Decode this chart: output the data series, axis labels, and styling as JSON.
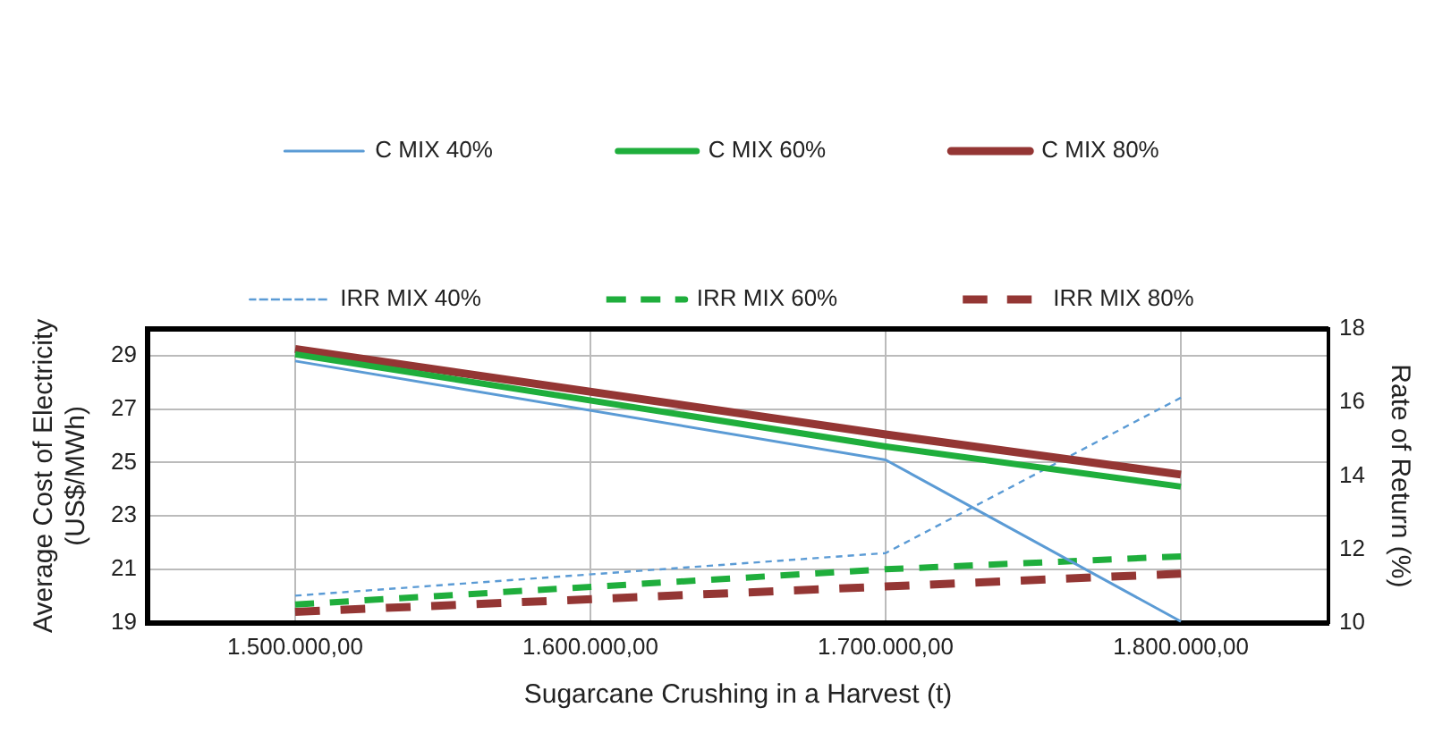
{
  "chart_data": {
    "type": "line",
    "xlabel": "Sugarcane Crushing in a Harvest (t)",
    "ylabel": "Average Cost of Electricity\n(US$/MWh)",
    "y2label": "Rate of Return (%)",
    "x": [
      1500000,
      1700000,
      1800000
    ],
    "xlim": [
      1450000,
      1850000
    ],
    "xticks": [
      {
        "value": 1500000,
        "label": "1.500.000,00"
      },
      {
        "value": 1600000,
        "label": "1.600.000,00"
      },
      {
        "value": 1700000,
        "label": "1.700.000,00"
      },
      {
        "value": 1800000,
        "label": "1.800.000,00"
      }
    ],
    "ylim": [
      19,
      30
    ],
    "yticks": [
      19,
      21,
      23,
      25,
      27,
      29
    ],
    "y2lim": [
      10,
      18
    ],
    "y2ticks": [
      10,
      12,
      14,
      16,
      18
    ],
    "grid": true,
    "legend": "top",
    "marker": "none",
    "series": [
      {
        "name": "C MIX 40%",
        "color": "#5b9bd5",
        "values": [
          28.8,
          25.1,
          19.05
        ],
        "line_style": "solid"
      },
      {
        "name": "C MIX 60%",
        "color": "#1fae3c",
        "values": [
          29.05,
          25.6,
          24.1
        ],
        "line_style": "solid"
      },
      {
        "name": "C MIX 80%",
        "color": "#943634",
        "values": [
          29.25,
          26.05,
          24.55
        ],
        "line_style": "solid"
      },
      {
        "name": "IRR MIX 40%",
        "color": "#5b9bd5",
        "values": [
          10.74,
          11.9,
          16.13
        ],
        "axis": "y2",
        "line_style": "dotted"
      },
      {
        "name": "IRR MIX 60%",
        "color": "#1fae3c",
        "values": [
          10.5,
          11.46,
          11.81
        ],
        "axis": "y2",
        "line_style": "dashed"
      },
      {
        "name": "IRR MIX 80%",
        "color": "#943634",
        "values": [
          10.3,
          10.99,
          11.34
        ],
        "axis": "y2",
        "line_style": "dashed"
      }
    ]
  }
}
